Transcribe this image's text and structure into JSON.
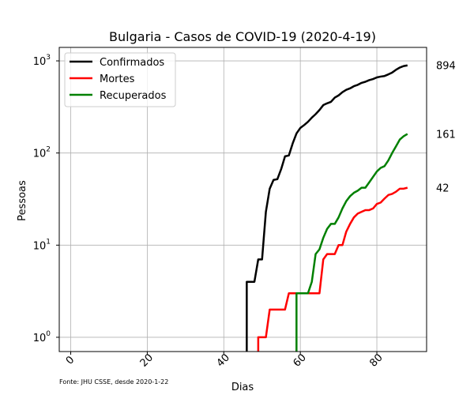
{
  "chart_data": {
    "type": "line",
    "title": "Bulgaria - Casos de COVID-19 (2020-4-19)",
    "xlabel": "Dias",
    "ylabel": "Pessoas",
    "yscale": "log",
    "xlim": [
      -3,
      93
    ],
    "ylim": [
      0.7,
      1400
    ],
    "grid": true,
    "legend_position": "top-left",
    "source_note": "Fonte: JHU CSSE, desde 2020-1-22",
    "x_ticks": [
      0,
      20,
      40,
      60,
      80
    ],
    "x_tick_labels": [
      "0",
      "20",
      "40",
      "60",
      "80"
    ],
    "y_ticks": [
      1,
      10,
      100,
      1000
    ],
    "y_tick_labels": [
      {
        "base": "10",
        "exp": "0"
      },
      {
        "base": "10",
        "exp": "1"
      },
      {
        "base": "10",
        "exp": "2"
      },
      {
        "base": "10",
        "exp": "3"
      }
    ],
    "series": [
      {
        "name": "Confirmados",
        "color": "#000000",
        "end_label": "894",
        "points": [
          [
            46,
            0.7
          ],
          [
            46,
            4
          ],
          [
            47,
            4
          ],
          [
            48,
            4
          ],
          [
            49,
            7
          ],
          [
            50,
            7
          ],
          [
            51,
            23
          ],
          [
            52,
            41
          ],
          [
            53,
            51
          ],
          [
            54,
            52
          ],
          [
            55,
            67
          ],
          [
            56,
            92
          ],
          [
            57,
            94
          ],
          [
            58,
            127
          ],
          [
            59,
            163
          ],
          [
            60,
            187
          ],
          [
            61,
            201
          ],
          [
            62,
            218
          ],
          [
            63,
            242
          ],
          [
            64,
            264
          ],
          [
            65,
            293
          ],
          [
            66,
            331
          ],
          [
            67,
            346
          ],
          [
            68,
            359
          ],
          [
            69,
            399
          ],
          [
            70,
            422
          ],
          [
            71,
            457
          ],
          [
            72,
            485
          ],
          [
            73,
            503
          ],
          [
            74,
            531
          ],
          [
            75,
            549
          ],
          [
            76,
            577
          ],
          [
            77,
            593
          ],
          [
            78,
            618
          ],
          [
            79,
            635
          ],
          [
            80,
            661
          ],
          [
            81,
            675
          ],
          [
            82,
            685
          ],
          [
            83,
            713
          ],
          [
            84,
            747
          ],
          [
            85,
            800
          ],
          [
            86,
            846
          ],
          [
            87,
            878
          ],
          [
            88,
            894
          ]
        ]
      },
      {
        "name": "Mortes",
        "color": "#ff0000",
        "end_label": "42",
        "points": [
          [
            49,
            0.7
          ],
          [
            49,
            1
          ],
          [
            50,
            1
          ],
          [
            51,
            1
          ],
          [
            52,
            2
          ],
          [
            53,
            2
          ],
          [
            54,
            2
          ],
          [
            55,
            2
          ],
          [
            56,
            2
          ],
          [
            57,
            3
          ],
          [
            58,
            3
          ],
          [
            59,
            3
          ],
          [
            60,
            3
          ],
          [
            61,
            3
          ],
          [
            62,
            3
          ],
          [
            63,
            3
          ],
          [
            64,
            3
          ],
          [
            65,
            3
          ],
          [
            66,
            7
          ],
          [
            67,
            8
          ],
          [
            68,
            8
          ],
          [
            69,
            8
          ],
          [
            70,
            10
          ],
          [
            71,
            10
          ],
          [
            72,
            14
          ],
          [
            73,
            17
          ],
          [
            74,
            20
          ],
          [
            75,
            22
          ],
          [
            76,
            23
          ],
          [
            77,
            24
          ],
          [
            78,
            24
          ],
          [
            79,
            25
          ],
          [
            80,
            28
          ],
          [
            81,
            29
          ],
          [
            82,
            32
          ],
          [
            83,
            35
          ],
          [
            84,
            36
          ],
          [
            85,
            38
          ],
          [
            86,
            41
          ],
          [
            87,
            41
          ],
          [
            88,
            42
          ]
        ]
      },
      {
        "name": "Recuperados",
        "color": "#008000",
        "end_label": "161",
        "points": [
          [
            59,
            0.7
          ],
          [
            59,
            3
          ],
          [
            60,
            3
          ],
          [
            61,
            3
          ],
          [
            62,
            3
          ],
          [
            63,
            4
          ],
          [
            64,
            8
          ],
          [
            65,
            9
          ],
          [
            66,
            12
          ],
          [
            67,
            15
          ],
          [
            68,
            17
          ],
          [
            69,
            17
          ],
          [
            70,
            20
          ],
          [
            71,
            25
          ],
          [
            72,
            30
          ],
          [
            73,
            34
          ],
          [
            74,
            37
          ],
          [
            75,
            39
          ],
          [
            76,
            42
          ],
          [
            77,
            42
          ],
          [
            78,
            48
          ],
          [
            79,
            55
          ],
          [
            80,
            63
          ],
          [
            81,
            69
          ],
          [
            82,
            72
          ],
          [
            83,
            83
          ],
          [
            84,
            100
          ],
          [
            85,
            118
          ],
          [
            86,
            140
          ],
          [
            87,
            152
          ],
          [
            88,
            161
          ]
        ]
      }
    ]
  }
}
